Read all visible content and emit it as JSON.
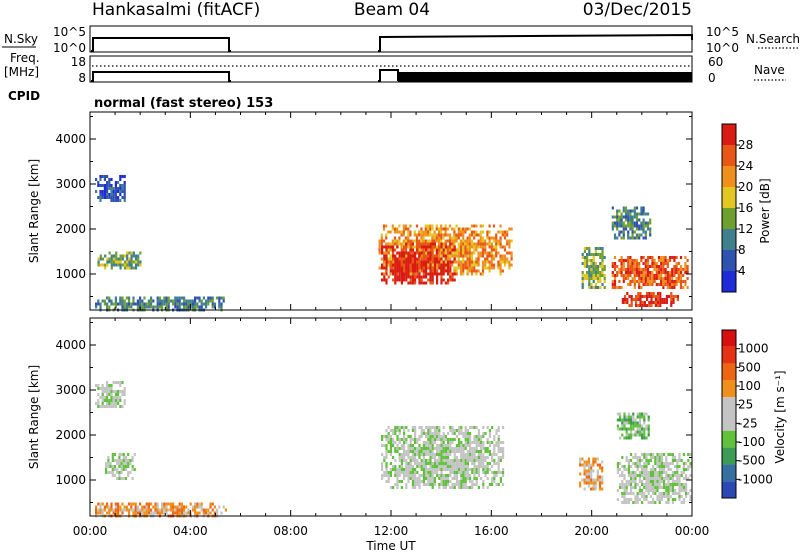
{
  "header": {
    "station": "Hankasalmi (fitACF)",
    "beam": "Beam 04",
    "date": "03/Dec/2015"
  },
  "summary_panels": {
    "nsky_label": "N.Sky",
    "nsky_ticks": [
      "10^5",
      "10^0"
    ],
    "nsearch_label": "N.Search",
    "nsearch_ticks": [
      "10^5",
      "10^0"
    ],
    "freq_label": [
      "Freq.",
      "[MHz]"
    ],
    "freq_ticks": [
      "18",
      "8"
    ],
    "nave_label": "Nave",
    "nave_ticks": [
      "60",
      "0"
    ],
    "cpid_label": "CPID",
    "cpid_text": "normal (fast stereo) 153"
  },
  "colors": {
    "power_scale": [
      "#1f2bd9",
      "#2f52b0",
      "#3f7f8e",
      "#6fa02f",
      "#e3c622",
      "#ef8f1c",
      "#e95717",
      "#d91b13"
    ],
    "velocity_scale": [
      "#2c49b3",
      "#35709e",
      "#3e9b55",
      "#60c23a",
      "#c4c4c4",
      "#c4c4c4",
      "#ef8f1c",
      "#ed6614",
      "#e43212",
      "#d90f0f"
    ]
  },
  "chart_data": [
    {
      "type": "heatmap",
      "name": "power",
      "ylabel": "Slant Range [km]",
      "yticks": [
        "4000",
        "3000",
        "2000",
        "1000"
      ],
      "ylim": [
        200,
        4600
      ],
      "xlim_hours": [
        0,
        24
      ],
      "colorbar_label": "Power [dB]",
      "colorbar_ticks": [
        "28",
        "24",
        "20",
        "16",
        "12",
        "8",
        "4"
      ],
      "regions": [
        {
          "t": [
            0.2,
            1.4
          ],
          "r": [
            2600,
            3200
          ],
          "level": 1
        },
        {
          "t": [
            0.3,
            2.0
          ],
          "r": [
            1100,
            1500
          ],
          "level": 3
        },
        {
          "t": [
            0.2,
            5.4
          ],
          "r": [
            220,
            500
          ],
          "level": 2
        },
        {
          "t": [
            11.5,
            16.8
          ],
          "r": [
            1000,
            2100
          ],
          "level": 5
        },
        {
          "t": [
            11.6,
            14.5
          ],
          "r": [
            800,
            1700
          ],
          "level": 7
        },
        {
          "t": [
            19.6,
            20.5
          ],
          "r": [
            700,
            1600
          ],
          "level": 3
        },
        {
          "t": [
            20.8,
            23.8
          ],
          "r": [
            700,
            1400
          ],
          "level": 6
        },
        {
          "t": [
            21.2,
            23.4
          ],
          "r": [
            300,
            600
          ],
          "level": 7
        },
        {
          "t": [
            20.8,
            22.3
          ],
          "r": [
            1800,
            2500
          ],
          "level": 2
        }
      ]
    },
    {
      "type": "heatmap",
      "name": "velocity",
      "ylabel": "Slant Range [km]",
      "yticks": [
        "4000",
        "3000",
        "2000",
        "1000"
      ],
      "ylim": [
        200,
        4600
      ],
      "xlim_hours": [
        0,
        24
      ],
      "xticks": [
        "00:00",
        "04:00",
        "08:00",
        "12:00",
        "16:00",
        "20:00",
        "00:00"
      ],
      "xlabel": "Time UT",
      "colorbar_label": "Velocity [m s⁻¹]",
      "colorbar_ticks": [
        "1000",
        "500",
        "100",
        "25",
        "-25",
        "-100",
        "-500",
        "-1000"
      ],
      "regions": [
        {
          "t": [
            0.2,
            1.4
          ],
          "r": [
            2600,
            3200
          ],
          "level": 4
        },
        {
          "t": [
            0.6,
            1.8
          ],
          "r": [
            1000,
            1600
          ],
          "level": 4
        },
        {
          "t": [
            0.2,
            5.4
          ],
          "r": [
            220,
            500
          ],
          "level": 6
        },
        {
          "t": [
            11.6,
            16.5
          ],
          "r": [
            800,
            2200
          ],
          "level": 4
        },
        {
          "t": [
            19.5,
            20.4
          ],
          "r": [
            800,
            1500
          ],
          "level": 6
        },
        {
          "t": [
            21.0,
            23.9
          ],
          "r": [
            500,
            1600
          ],
          "level": 4
        },
        {
          "t": [
            21.0,
            22.3
          ],
          "r": [
            1900,
            2500
          ],
          "level": 3
        }
      ]
    }
  ]
}
